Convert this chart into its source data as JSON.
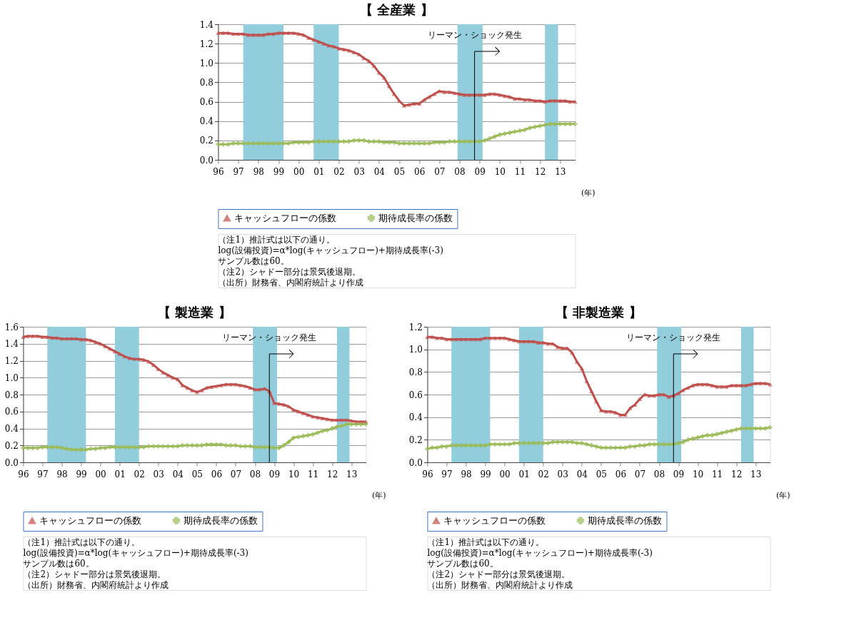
{
  "chart_data": [
    {
      "type": "line",
      "title": "【 全産業 】",
      "xlabel": "(年)",
      "legend": "bottom",
      "grid": "y",
      "line_style": "solid",
      "x": [
        1996,
        1996.25,
        1996.5,
        1996.75,
        1997,
        1997.25,
        1997.5,
        1997.75,
        1998,
        1998.25,
        1998.5,
        1998.75,
        1999,
        1999.25,
        1999.5,
        1999.75,
        2000,
        2000.25,
        2000.5,
        2000.75,
        2001,
        2001.25,
        2001.5,
        2001.75,
        2002,
        2002.25,
        2002.5,
        2002.75,
        2003,
        2003.25,
        2003.5,
        2003.75,
        2004,
        2004.25,
        2004.5,
        2004.75,
        2005,
        2005.25,
        2005.5,
        2005.75,
        2006,
        2006.25,
        2006.5,
        2006.75,
        2007,
        2007.25,
        2007.5,
        2007.75,
        2008,
        2008.25,
        2008.5,
        2008.75,
        2009,
        2009.25,
        2009.5,
        2009.75,
        2010,
        2010.25,
        2010.5,
        2010.75,
        2011,
        2011.25,
        2011.5,
        2011.75,
        2012,
        2012.25,
        2012.5,
        2012.75,
        2013,
        2013.25,
        2013.5,
        2013.75
      ],
      "xlim": [
        1996,
        2013.75
      ],
      "xticks": [
        {
          "value": 1996,
          "label": "96"
        },
        {
          "value": 1997,
          "label": "97"
        },
        {
          "value": 1998,
          "label": "98"
        },
        {
          "value": 1999,
          "label": "99"
        },
        {
          "value": 2000,
          "label": "00"
        },
        {
          "value": 2001,
          "label": "01"
        },
        {
          "value": 2002,
          "label": "02"
        },
        {
          "value": 2003,
          "label": "03"
        },
        {
          "value": 2004,
          "label": "04"
        },
        {
          "value": 2005,
          "label": "05"
        },
        {
          "value": 2006,
          "label": "06"
        },
        {
          "value": 2007,
          "label": "07"
        },
        {
          "value": 2008,
          "label": "08"
        },
        {
          "value": 2009,
          "label": "09"
        },
        {
          "value": 2010,
          "label": "10"
        },
        {
          "value": 2011,
          "label": "11"
        },
        {
          "value": 2012,
          "label": "12"
        },
        {
          "value": 2013,
          "label": "13"
        }
      ],
      "ylim": [
        0,
        1.4
      ],
      "yticks": [
        {
          "value": 0,
          "label": "0.0"
        },
        {
          "value": 0.2,
          "label": "0.2"
        },
        {
          "value": 0.4,
          "label": "0.4"
        },
        {
          "value": 0.6,
          "label": "0.6"
        },
        {
          "value": 0.8,
          "label": "0.8"
        },
        {
          "value": 1,
          "label": "1.0"
        },
        {
          "value": 1.2,
          "label": "1.2"
        },
        {
          "value": 1.4,
          "label": "1.4"
        }
      ],
      "series": [
        {
          "name": "キャッシュフローの係数",
          "color": "#c0504d",
          "marker": "triangle",
          "values": [
            1.31,
            1.31,
            1.31,
            1.3,
            1.3,
            1.3,
            1.29,
            1.29,
            1.29,
            1.29,
            1.3,
            1.3,
            1.31,
            1.31,
            1.31,
            1.31,
            1.3,
            1.29,
            1.26,
            1.24,
            1.22,
            1.2,
            1.18,
            1.17,
            1.15,
            1.14,
            1.13,
            1.11,
            1.09,
            1.05,
            1.02,
            0.97,
            0.9,
            0.85,
            0.76,
            0.68,
            0.61,
            0.56,
            0.57,
            0.58,
            0.58,
            0.62,
            0.65,
            0.68,
            0.71,
            0.7,
            0.7,
            0.69,
            0.68,
            0.67,
            0.67,
            0.67,
            0.67,
            0.67,
            0.68,
            0.68,
            0.67,
            0.66,
            0.65,
            0.63,
            0.63,
            0.62,
            0.62,
            0.61,
            0.61,
            0.6,
            0.61,
            0.61,
            0.61,
            0.61,
            0.6,
            0.6
          ]
        },
        {
          "name": "期待成長率の係数",
          "color": "#9bbb59",
          "marker": "cross",
          "values": [
            0.16,
            0.16,
            0.16,
            0.17,
            0.17,
            0.17,
            0.17,
            0.17,
            0.17,
            0.17,
            0.17,
            0.17,
            0.17,
            0.17,
            0.17,
            0.18,
            0.18,
            0.18,
            0.18,
            0.19,
            0.19,
            0.19,
            0.19,
            0.19,
            0.19,
            0.19,
            0.19,
            0.2,
            0.2,
            0.2,
            0.19,
            0.19,
            0.19,
            0.18,
            0.18,
            0.18,
            0.17,
            0.17,
            0.17,
            0.17,
            0.17,
            0.17,
            0.17,
            0.18,
            0.18,
            0.18,
            0.19,
            0.19,
            0.19,
            0.19,
            0.19,
            0.19,
            0.19,
            0.2,
            0.22,
            0.24,
            0.26,
            0.27,
            0.28,
            0.29,
            0.3,
            0.31,
            0.33,
            0.34,
            0.35,
            0.36,
            0.37,
            0.37,
            0.37,
            0.37,
            0.37,
            0.37
          ]
        }
      ],
      "bands": [
        {
          "axis": "x",
          "from": 1997.25,
          "to": 1999.25,
          "color": "#92cddc"
        },
        {
          "axis": "x",
          "from": 2000.75,
          "to": 2002,
          "color": "#92cddc"
        },
        {
          "axis": "x",
          "from": 2007.9,
          "to": 2009.15,
          "color": "#92cddc"
        },
        {
          "axis": "x",
          "from": 2012.25,
          "to": 2012.9,
          "color": "#92cddc"
        }
      ],
      "ref_lines": [
        {
          "axis": "x",
          "value": 2008.75,
          "label": "リーマン・ショック発生"
        }
      ],
      "annotations": [
        "（注1）推計式は以下の通り。",
        "log(設備投資)=α*log(キャッシュフロー)+期待成長率(-3)",
        "サンプル数は60。",
        "（注2）シャドー部分は景気後退期。",
        "（出所）財務省、内閣府統計より作成"
      ]
    },
    {
      "type": "line",
      "title": "【 製造業 】",
      "xlabel": "(年)",
      "legend": "bottom",
      "grid": "y",
      "line_style": "solid",
      "x": [
        1996,
        1996.25,
        1996.5,
        1996.75,
        1997,
        1997.25,
        1997.5,
        1997.75,
        1998,
        1998.25,
        1998.5,
        1998.75,
        1999,
        1999.25,
        1999.5,
        1999.75,
        2000,
        2000.25,
        2000.5,
        2000.75,
        2001,
        2001.25,
        2001.5,
        2001.75,
        2002,
        2002.25,
        2002.5,
        2002.75,
        2003,
        2003.25,
        2003.5,
        2003.75,
        2004,
        2004.25,
        2004.5,
        2004.75,
        2005,
        2005.25,
        2005.5,
        2005.75,
        2006,
        2006.25,
        2006.5,
        2006.75,
        2007,
        2007.25,
        2007.5,
        2007.75,
        2008,
        2008.25,
        2008.5,
        2008.75,
        2009,
        2009.25,
        2009.5,
        2009.75,
        2010,
        2010.25,
        2010.5,
        2010.75,
        2011,
        2011.25,
        2011.5,
        2011.75,
        2012,
        2012.25,
        2012.5,
        2012.75,
        2013,
        2013.25,
        2013.5,
        2013.75
      ],
      "xlim": [
        1996,
        2013.75
      ],
      "xticks": [
        {
          "value": 1996,
          "label": "96"
        },
        {
          "value": 1997,
          "label": "97"
        },
        {
          "value": 1998,
          "label": "98"
        },
        {
          "value": 1999,
          "label": "99"
        },
        {
          "value": 2000,
          "label": "00"
        },
        {
          "value": 2001,
          "label": "01"
        },
        {
          "value": 2002,
          "label": "02"
        },
        {
          "value": 2003,
          "label": "03"
        },
        {
          "value": 2004,
          "label": "04"
        },
        {
          "value": 2005,
          "label": "05"
        },
        {
          "value": 2006,
          "label": "06"
        },
        {
          "value": 2007,
          "label": "07"
        },
        {
          "value": 2008,
          "label": "08"
        },
        {
          "value": 2009,
          "label": "09"
        },
        {
          "value": 2010,
          "label": "10"
        },
        {
          "value": 2011,
          "label": "11"
        },
        {
          "value": 2012,
          "label": "12"
        },
        {
          "value": 2013,
          "label": "13"
        }
      ],
      "ylim": [
        0,
        1.6
      ],
      "yticks": [
        {
          "value": 0,
          "label": "0.0"
        },
        {
          "value": 0.2,
          "label": "0.2"
        },
        {
          "value": 0.4,
          "label": "0.4"
        },
        {
          "value": 0.6,
          "label": "0.6"
        },
        {
          "value": 0.8,
          "label": "0.8"
        },
        {
          "value": 1,
          "label": "1.0"
        },
        {
          "value": 1.2,
          "label": "1.2"
        },
        {
          "value": 1.4,
          "label": "1.4"
        },
        {
          "value": 1.6,
          "label": "1.6"
        }
      ],
      "series": [
        {
          "name": "キャッシュフローの係数",
          "color": "#c0504d",
          "marker": "triangle",
          "values": [
            1.48,
            1.49,
            1.49,
            1.49,
            1.48,
            1.48,
            1.47,
            1.47,
            1.46,
            1.46,
            1.46,
            1.46,
            1.45,
            1.45,
            1.44,
            1.42,
            1.4,
            1.37,
            1.34,
            1.31,
            1.28,
            1.25,
            1.23,
            1.22,
            1.22,
            1.21,
            1.19,
            1.15,
            1.1,
            1.06,
            1.03,
            1.0,
            0.98,
            0.91,
            0.88,
            0.85,
            0.83,
            0.85,
            0.88,
            0.89,
            0.9,
            0.91,
            0.92,
            0.92,
            0.92,
            0.91,
            0.9,
            0.88,
            0.86,
            0.86,
            0.87,
            0.84,
            0.7,
            0.69,
            0.68,
            0.66,
            0.62,
            0.6,
            0.58,
            0.56,
            0.54,
            0.53,
            0.52,
            0.51,
            0.5,
            0.5,
            0.5,
            0.5,
            0.49,
            0.48,
            0.48,
            0.48
          ]
        },
        {
          "name": "期待成長率の係数",
          "color": "#9bbb59",
          "marker": "cross",
          "values": [
            0.17,
            0.17,
            0.17,
            0.17,
            0.18,
            0.18,
            0.18,
            0.18,
            0.17,
            0.16,
            0.15,
            0.15,
            0.15,
            0.15,
            0.16,
            0.16,
            0.17,
            0.17,
            0.18,
            0.18,
            0.18,
            0.18,
            0.18,
            0.18,
            0.18,
            0.18,
            0.19,
            0.19,
            0.19,
            0.19,
            0.19,
            0.19,
            0.19,
            0.2,
            0.2,
            0.2,
            0.2,
            0.2,
            0.21,
            0.21,
            0.21,
            0.21,
            0.2,
            0.2,
            0.2,
            0.19,
            0.19,
            0.19,
            0.18,
            0.18,
            0.18,
            0.18,
            0.17,
            0.17,
            0.2,
            0.24,
            0.29,
            0.3,
            0.31,
            0.32,
            0.33,
            0.35,
            0.37,
            0.38,
            0.4,
            0.42,
            0.43,
            0.45,
            0.45,
            0.45,
            0.45,
            0.45
          ]
        }
      ],
      "bands": [
        {
          "axis": "x",
          "from": 1997.25,
          "to": 1999.25,
          "color": "#92cddc"
        },
        {
          "axis": "x",
          "from": 2000.75,
          "to": 2002,
          "color": "#92cddc"
        },
        {
          "axis": "x",
          "from": 2007.9,
          "to": 2009.15,
          "color": "#92cddc"
        },
        {
          "axis": "x",
          "from": 2012.25,
          "to": 2012.9,
          "color": "#92cddc"
        }
      ],
      "ref_lines": [
        {
          "axis": "x",
          "value": 2008.75,
          "label": "リーマン・ショック発生"
        }
      ],
      "annotations": [
        "（注1）推計式は以下の通り。",
        "log(設備投資)=α*log(キャッシュフロー)+期待成長率(-3)",
        "サンプル数は60。",
        "（注2）シャドー部分は景気後退期。",
        "（出所）財務省、内閣府統計より作成"
      ]
    },
    {
      "type": "line",
      "title": "【 非製造業 】",
      "xlabel": "(年)",
      "legend": "bottom",
      "grid": "y",
      "line_style": "solid",
      "x": [
        1996,
        1996.25,
        1996.5,
        1996.75,
        1997,
        1997.25,
        1997.5,
        1997.75,
        1998,
        1998.25,
        1998.5,
        1998.75,
        1999,
        1999.25,
        1999.5,
        1999.75,
        2000,
        2000.25,
        2000.5,
        2000.75,
        2001,
        2001.25,
        2001.5,
        2001.75,
        2002,
        2002.25,
        2002.5,
        2002.75,
        2003,
        2003.25,
        2003.5,
        2003.75,
        2004,
        2004.25,
        2004.5,
        2004.75,
        2005,
        2005.25,
        2005.5,
        2005.75,
        2006,
        2006.25,
        2006.5,
        2006.75,
        2007,
        2007.25,
        2007.5,
        2007.75,
        2008,
        2008.25,
        2008.5,
        2008.75,
        2009,
        2009.25,
        2009.5,
        2009.75,
        2010,
        2010.25,
        2010.5,
        2010.75,
        2011,
        2011.25,
        2011.5,
        2011.75,
        2012,
        2012.25,
        2012.5,
        2012.75,
        2013,
        2013.25,
        2013.5,
        2013.75
      ],
      "xlim": [
        1996,
        2013.75
      ],
      "xticks": [
        {
          "value": 1996,
          "label": "96"
        },
        {
          "value": 1997,
          "label": "97"
        },
        {
          "value": 1998,
          "label": "98"
        },
        {
          "value": 1999,
          "label": "99"
        },
        {
          "value": 2000,
          "label": "00"
        },
        {
          "value": 2001,
          "label": "01"
        },
        {
          "value": 2002,
          "label": "02"
        },
        {
          "value": 2003,
          "label": "03"
        },
        {
          "value": 2004,
          "label": "04"
        },
        {
          "value": 2005,
          "label": "05"
        },
        {
          "value": 2006,
          "label": "06"
        },
        {
          "value": 2007,
          "label": "07"
        },
        {
          "value": 2008,
          "label": "08"
        },
        {
          "value": 2009,
          "label": "09"
        },
        {
          "value": 2010,
          "label": "10"
        },
        {
          "value": 2011,
          "label": "11"
        },
        {
          "value": 2012,
          "label": "12"
        },
        {
          "value": 2013,
          "label": "13"
        }
      ],
      "ylim": [
        0,
        1.2
      ],
      "yticks": [
        {
          "value": 0,
          "label": "0.0"
        },
        {
          "value": 0.2,
          "label": "0.2"
        },
        {
          "value": 0.4,
          "label": "0.4"
        },
        {
          "value": 0.6,
          "label": "0.6"
        },
        {
          "value": 0.8,
          "label": "0.8"
        },
        {
          "value": 1,
          "label": "1.0"
        },
        {
          "value": 1.2,
          "label": "1.2"
        }
      ],
      "series": [
        {
          "name": "キャッシュフローの係数",
          "color": "#c0504d",
          "marker": "triangle",
          "values": [
            1.11,
            1.11,
            1.1,
            1.1,
            1.09,
            1.09,
            1.09,
            1.09,
            1.09,
            1.09,
            1.09,
            1.09,
            1.1,
            1.1,
            1.1,
            1.1,
            1.1,
            1.09,
            1.08,
            1.07,
            1.07,
            1.07,
            1.07,
            1.06,
            1.06,
            1.05,
            1.05,
            1.02,
            1.01,
            1.01,
            0.97,
            0.89,
            0.83,
            0.72,
            0.63,
            0.54,
            0.46,
            0.45,
            0.45,
            0.44,
            0.42,
            0.42,
            0.48,
            0.51,
            0.56,
            0.6,
            0.59,
            0.59,
            0.6,
            0.6,
            0.58,
            0.59,
            0.61,
            0.64,
            0.66,
            0.68,
            0.69,
            0.69,
            0.69,
            0.68,
            0.67,
            0.67,
            0.67,
            0.68,
            0.68,
            0.68,
            0.68,
            0.69,
            0.7,
            0.7,
            0.7,
            0.69
          ]
        },
        {
          "name": "期待成長率の係数",
          "color": "#9bbb59",
          "marker": "cross",
          "values": [
            0.12,
            0.13,
            0.13,
            0.14,
            0.14,
            0.15,
            0.15,
            0.15,
            0.15,
            0.15,
            0.15,
            0.15,
            0.15,
            0.16,
            0.16,
            0.16,
            0.16,
            0.16,
            0.17,
            0.17,
            0.17,
            0.17,
            0.17,
            0.17,
            0.17,
            0.17,
            0.18,
            0.18,
            0.18,
            0.18,
            0.18,
            0.17,
            0.17,
            0.16,
            0.15,
            0.14,
            0.13,
            0.13,
            0.13,
            0.13,
            0.13,
            0.13,
            0.14,
            0.14,
            0.15,
            0.15,
            0.16,
            0.16,
            0.16,
            0.16,
            0.16,
            0.16,
            0.17,
            0.18,
            0.2,
            0.21,
            0.22,
            0.23,
            0.24,
            0.24,
            0.25,
            0.26,
            0.27,
            0.28,
            0.29,
            0.3,
            0.3,
            0.3,
            0.3,
            0.3,
            0.3,
            0.31
          ]
        }
      ],
      "bands": [
        {
          "axis": "x",
          "from": 1997.25,
          "to": 1999.25,
          "color": "#92cddc"
        },
        {
          "axis": "x",
          "from": 2000.75,
          "to": 2002,
          "color": "#92cddc"
        },
        {
          "axis": "x",
          "from": 2007.9,
          "to": 2009.15,
          "color": "#92cddc"
        },
        {
          "axis": "x",
          "from": 2012.25,
          "to": 2012.9,
          "color": "#92cddc"
        }
      ],
      "ref_lines": [
        {
          "axis": "x",
          "value": 2008.75,
          "label": "リーマン・ショック発生"
        }
      ],
      "annotations": [
        "（注1）推計式は以下の通り。",
        "log(設備投資)=α*log(キャッシュフロー)+期待成長率(-3)",
        "サンプル数は60。",
        "（注2）シャドー部分は景気後退期。",
        "（出所）財務省、内閣府統計より作成"
      ]
    }
  ]
}
